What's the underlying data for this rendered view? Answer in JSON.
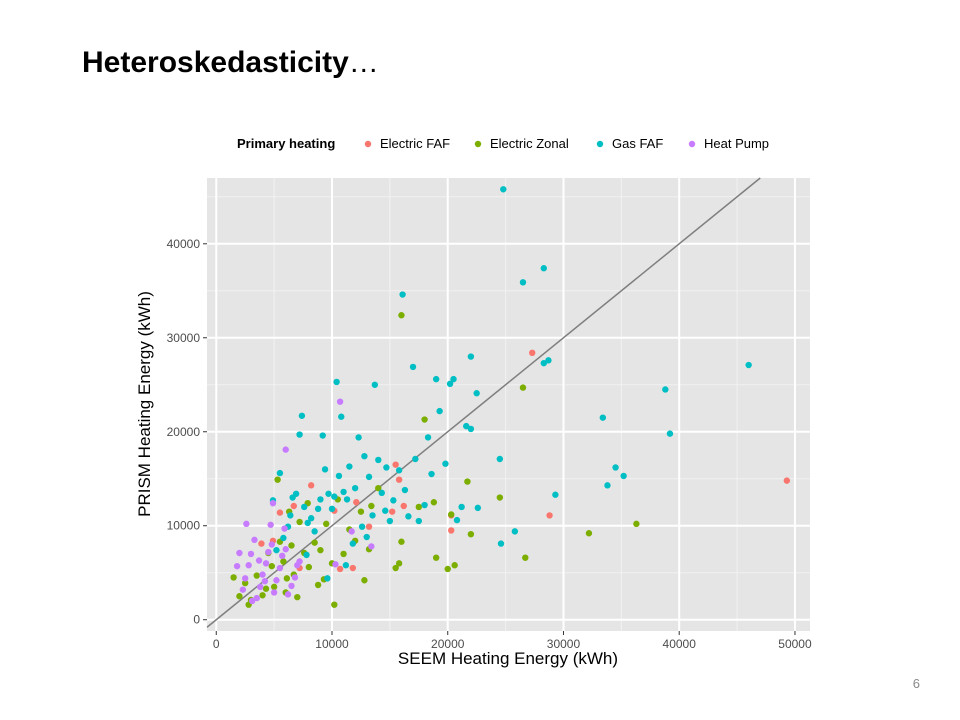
{
  "slide": {
    "title": "Heteroskedasticity",
    "title_suffix": "…",
    "page_number": "6"
  },
  "chart_data": {
    "type": "scatter",
    "xlabel": "SEEM Heating Energy (kWh)",
    "ylabel": "PRISM Heating Energy (kWh)",
    "xlim": [
      -800,
      51300
    ],
    "ylim": [
      -1200,
      47000
    ],
    "x_ticks": [
      0,
      10000,
      20000,
      30000,
      40000,
      50000
    ],
    "y_ticks": [
      0,
      10000,
      20000,
      30000,
      40000
    ],
    "x_tick_labels": [
      "0",
      "10000",
      "20000",
      "30000",
      "40000",
      "50000"
    ],
    "y_tick_labels": [
      "0",
      "10000",
      "20000",
      "30000",
      "40000"
    ],
    "grid": true,
    "background": "#e5e5e5",
    "legend_position": "top",
    "legend_title": "Primary heating",
    "reference_line": "y = x",
    "series": [
      {
        "name": "Electric FAF",
        "color": "#f8766d",
        "points": [
          [
            27300,
            28400
          ],
          [
            49300,
            14800
          ],
          [
            28800,
            11100
          ],
          [
            20300,
            11100
          ],
          [
            20300,
            9500
          ],
          [
            15800,
            14900
          ],
          [
            15500,
            16500
          ],
          [
            16200,
            12100
          ],
          [
            10200,
            11600
          ],
          [
            8200,
            14300
          ],
          [
            6700,
            12100
          ],
          [
            5500,
            11400
          ],
          [
            4900,
            8400
          ],
          [
            7200,
            5500
          ],
          [
            12100,
            12500
          ],
          [
            13200,
            9900
          ],
          [
            11800,
            5500
          ],
          [
            10700,
            5400
          ],
          [
            3900,
            8100
          ],
          [
            15200,
            11500
          ]
        ]
      },
      {
        "name": "Electric Zonal",
        "color": "#7cae00",
        "points": [
          [
            16000,
            32400
          ],
          [
            26500,
            24700
          ],
          [
            36300,
            10200
          ],
          [
            32200,
            9200
          ],
          [
            26700,
            6600
          ],
          [
            24500,
            13000
          ],
          [
            22000,
            9100
          ],
          [
            21700,
            14700
          ],
          [
            20300,
            11200
          ],
          [
            20000,
            5400
          ],
          [
            19000,
            6600
          ],
          [
            18000,
            21300
          ],
          [
            17500,
            12000
          ],
          [
            16000,
            8300
          ],
          [
            15500,
            5500
          ],
          [
            14000,
            14000
          ],
          [
            13200,
            7500
          ],
          [
            12500,
            11500
          ],
          [
            12000,
            8400
          ],
          [
            11500,
            9600
          ],
          [
            11000,
            7000
          ],
          [
            10500,
            12800
          ],
          [
            10000,
            6000
          ],
          [
            10200,
            1600
          ],
          [
            9500,
            10200
          ],
          [
            9000,
            7400
          ],
          [
            8800,
            3700
          ],
          [
            8500,
            8200
          ],
          [
            8000,
            5600
          ],
          [
            7600,
            7100
          ],
          [
            7200,
            10400
          ],
          [
            7000,
            2400
          ],
          [
            6700,
            4800
          ],
          [
            6500,
            7900
          ],
          [
            6300,
            11500
          ],
          [
            6000,
            2900
          ],
          [
            5800,
            6200
          ],
          [
            5500,
            8300
          ],
          [
            5300,
            14900
          ],
          [
            5000,
            3500
          ],
          [
            4800,
            5700
          ],
          [
            4500,
            7100
          ],
          [
            4000,
            2600
          ],
          [
            3500,
            4700
          ],
          [
            3000,
            2100
          ],
          [
            2800,
            1600
          ],
          [
            2500,
            3900
          ],
          [
            2000,
            2500
          ],
          [
            1500,
            4500
          ],
          [
            12800,
            4200
          ],
          [
            13400,
            12100
          ],
          [
            9300,
            4300
          ],
          [
            7900,
            12400
          ],
          [
            6100,
            4400
          ],
          [
            4300,
            3300
          ],
          [
            15800,
            6000
          ],
          [
            18800,
            12500
          ],
          [
            20600,
            5800
          ]
        ]
      },
      {
        "name": "Gas FAF",
        "color": "#00bfc4",
        "points": [
          [
            24800,
            45800
          ],
          [
            26500,
            35900
          ],
          [
            28300,
            37400
          ],
          [
            46000,
            27100
          ],
          [
            38800,
            24500
          ],
          [
            39200,
            19800
          ],
          [
            33400,
            21500
          ],
          [
            34500,
            16200
          ],
          [
            35200,
            15300
          ],
          [
            33800,
            14300
          ],
          [
            29300,
            13300
          ],
          [
            28700,
            27600
          ],
          [
            28300,
            27300
          ],
          [
            25800,
            9400
          ],
          [
            24500,
            17100
          ],
          [
            24600,
            8100
          ],
          [
            22500,
            24100
          ],
          [
            22000,
            28000
          ],
          [
            22000,
            20300
          ],
          [
            21600,
            20600
          ],
          [
            20800,
            10600
          ],
          [
            20500,
            25600
          ],
          [
            20200,
            25100
          ],
          [
            19300,
            22200
          ],
          [
            19000,
            25600
          ],
          [
            18600,
            15500
          ],
          [
            18300,
            19400
          ],
          [
            18000,
            12200
          ],
          [
            17500,
            10500
          ],
          [
            17200,
            17100
          ],
          [
            17000,
            26900
          ],
          [
            16600,
            11000
          ],
          [
            16100,
            34600
          ],
          [
            15800,
            15900
          ],
          [
            15300,
            12700
          ],
          [
            15000,
            10500
          ],
          [
            14700,
            16200
          ],
          [
            14300,
            13500
          ],
          [
            14000,
            17000
          ],
          [
            13700,
            25000
          ],
          [
            13500,
            11100
          ],
          [
            13200,
            15200
          ],
          [
            13000,
            8800
          ],
          [
            12800,
            17400
          ],
          [
            12600,
            9900
          ],
          [
            12300,
            19400
          ],
          [
            12000,
            14000
          ],
          [
            11800,
            8100
          ],
          [
            11500,
            16300
          ],
          [
            11300,
            12800
          ],
          [
            11000,
            13600
          ],
          [
            10800,
            21600
          ],
          [
            10600,
            15300
          ],
          [
            10400,
            25300
          ],
          [
            10200,
            13100
          ],
          [
            10000,
            11800
          ],
          [
            9700,
            13400
          ],
          [
            9400,
            16000
          ],
          [
            9200,
            19600
          ],
          [
            9000,
            12800
          ],
          [
            8800,
            11800
          ],
          [
            8500,
            9400
          ],
          [
            8200,
            10800
          ],
          [
            7900,
            10300
          ],
          [
            7600,
            12000
          ],
          [
            7400,
            21700
          ],
          [
            7200,
            19700
          ],
          [
            6900,
            13400
          ],
          [
            6600,
            13000
          ],
          [
            6400,
            11100
          ],
          [
            6200,
            9900
          ],
          [
            5800,
            8700
          ],
          [
            5500,
            15600
          ],
          [
            5200,
            7400
          ],
          [
            4900,
            12700
          ],
          [
            7800,
            6900
          ],
          [
            9600,
            4400
          ],
          [
            11200,
            5800
          ],
          [
            16300,
            13800
          ],
          [
            19800,
            16600
          ],
          [
            21200,
            12000
          ],
          [
            22600,
            11900
          ],
          [
            14600,
            11600
          ]
        ]
      },
      {
        "name": "Heat Pump",
        "color": "#c77cff",
        "points": [
          [
            10700,
            23200
          ],
          [
            6000,
            18100
          ],
          [
            7200,
            6200
          ],
          [
            7000,
            5800
          ],
          [
            6800,
            4500
          ],
          [
            6500,
            3600
          ],
          [
            6200,
            2700
          ],
          [
            6000,
            7500
          ],
          [
            5700,
            6800
          ],
          [
            5500,
            5500
          ],
          [
            5200,
            4200
          ],
          [
            5000,
            2900
          ],
          [
            4800,
            8000
          ],
          [
            4500,
            7200
          ],
          [
            4300,
            6000
          ],
          [
            4000,
            4800
          ],
          [
            3800,
            3500
          ],
          [
            3500,
            2300
          ],
          [
            3300,
            8500
          ],
          [
            3000,
            7000
          ],
          [
            2800,
            5800
          ],
          [
            2500,
            4400
          ],
          [
            2300,
            3200
          ],
          [
            2000,
            7100
          ],
          [
            1800,
            5700
          ],
          [
            3700,
            6300
          ],
          [
            4200,
            4100
          ],
          [
            4700,
            10100
          ],
          [
            2600,
            10200
          ],
          [
            3100,
            2000
          ],
          [
            4900,
            12400
          ],
          [
            5900,
            9700
          ],
          [
            10300,
            5900
          ],
          [
            11700,
            9400
          ],
          [
            13400,
            7800
          ]
        ]
      }
    ]
  }
}
